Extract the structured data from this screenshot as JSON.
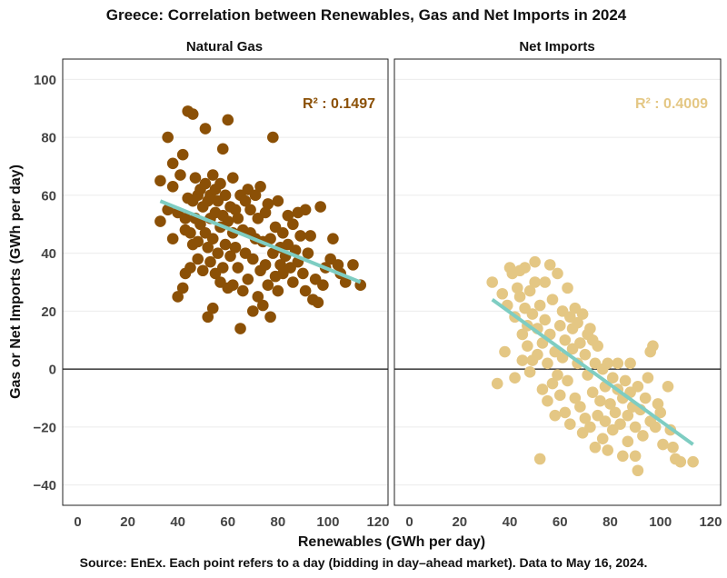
{
  "chart_data": {
    "type": "scatter",
    "title": "Greece: Correlation between Renewables, Gas and Net Imports in 2024",
    "xlabel": "Renewables (GWh per day)",
    "ylabel": "Gas or Net Imports (GWh per day)",
    "caption": "Source: EnEx. Each point refers to a day (bidding in day–ahead market). Data to May 16, 2024.",
    "xlim": [
      -6,
      124
    ],
    "ylim": [
      -47,
      107
    ],
    "x_ticks": [
      0,
      20,
      40,
      60,
      80,
      100,
      120
    ],
    "y_ticks": [
      100,
      80,
      60,
      40,
      20,
      0,
      -20,
      -40
    ],
    "y_tick_labels": [
      "100",
      "80",
      "60",
      "40",
      "20",
      "0",
      "−20",
      "−40"
    ],
    "x_tick_labels": [
      "0",
      "20",
      "40",
      "60",
      "80",
      "100",
      "120"
    ],
    "zero_line": 0,
    "trend_color": "#7ecdc2",
    "panels": [
      {
        "title": "Natural Gas",
        "r2_label": "R² : 0.1497",
        "r2_color": "#8b5006",
        "point_color": "#8b5006",
        "trend": {
          "x": [
            33,
            113
          ],
          "y": [
            58,
            30
          ]
        },
        "points": [
          [
            33,
            65
          ],
          [
            33,
            51
          ],
          [
            36,
            55
          ],
          [
            36,
            80
          ],
          [
            38,
            71
          ],
          [
            38,
            63
          ],
          [
            38,
            45
          ],
          [
            40,
            54
          ],
          [
            40,
            25
          ],
          [
            41,
            67
          ],
          [
            42,
            28
          ],
          [
            42,
            74
          ],
          [
            43,
            52
          ],
          [
            43,
            33
          ],
          [
            43,
            48
          ],
          [
            44,
            59
          ],
          [
            44,
            89
          ],
          [
            45,
            35
          ],
          [
            45,
            47
          ],
          [
            46,
            88
          ],
          [
            46,
            58
          ],
          [
            46,
            43
          ],
          [
            47,
            52
          ],
          [
            47,
            66
          ],
          [
            48,
            60
          ],
          [
            48,
            38
          ],
          [
            48,
            44
          ],
          [
            49,
            62
          ],
          [
            49,
            50
          ],
          [
            50,
            56
          ],
          [
            50,
            34
          ],
          [
            51,
            83
          ],
          [
            51,
            64
          ],
          [
            51,
            47
          ],
          [
            52,
            18
          ],
          [
            52,
            58
          ],
          [
            52,
            42
          ],
          [
            53,
            60
          ],
          [
            53,
            52
          ],
          [
            53,
            37
          ],
          [
            54,
            21
          ],
          [
            54,
            67
          ],
          [
            54,
            45
          ],
          [
            55,
            54
          ],
          [
            55,
            33
          ],
          [
            55,
            62
          ],
          [
            56,
            40
          ],
          [
            56,
            58
          ],
          [
            57,
            64
          ],
          [
            57,
            49
          ],
          [
            57,
            30
          ],
          [
            58,
            76
          ],
          [
            58,
            35
          ],
          [
            58,
            53
          ],
          [
            59,
            60
          ],
          [
            59,
            43
          ],
          [
            60,
            86
          ],
          [
            60,
            28
          ],
          [
            60,
            51
          ],
          [
            61,
            56
          ],
          [
            61,
            39
          ],
          [
            62,
            66
          ],
          [
            62,
            47
          ],
          [
            62,
            29
          ],
          [
            63,
            55
          ],
          [
            63,
            42
          ],
          [
            64,
            35
          ],
          [
            64,
            52
          ],
          [
            65,
            60
          ],
          [
            65,
            14
          ],
          [
            66,
            27
          ],
          [
            66,
            48
          ],
          [
            67,
            58
          ],
          [
            67,
            40
          ],
          [
            68,
            62
          ],
          [
            68,
            31
          ],
          [
            69,
            55
          ],
          [
            69,
            47
          ],
          [
            70,
            20
          ],
          [
            70,
            38
          ],
          [
            71,
            60
          ],
          [
            71,
            45
          ],
          [
            72,
            25
          ],
          [
            72,
            52
          ],
          [
            73,
            34
          ],
          [
            73,
            63
          ],
          [
            74,
            44
          ],
          [
            74,
            22
          ],
          [
            75,
            54
          ],
          [
            75,
            36
          ],
          [
            76,
            57
          ],
          [
            76,
            29
          ],
          [
            77,
            45
          ],
          [
            77,
            18
          ],
          [
            78,
            80
          ],
          [
            78,
            40
          ],
          [
            79,
            49
          ],
          [
            79,
            32
          ],
          [
            80,
            58
          ],
          [
            80,
            27
          ],
          [
            81,
            42
          ],
          [
            81,
            36
          ],
          [
            82,
            47
          ],
          [
            82,
            33
          ],
          [
            83,
            39
          ],
          [
            84,
            53
          ],
          [
            84,
            43
          ],
          [
            85,
            35
          ],
          [
            86,
            50
          ],
          [
            86,
            30
          ],
          [
            87,
            41
          ],
          [
            88,
            54
          ],
          [
            88,
            37
          ],
          [
            89,
            46
          ],
          [
            90,
            33
          ],
          [
            91,
            55
          ],
          [
            91,
            27
          ],
          [
            92,
            40
          ],
          [
            93,
            46
          ],
          [
            94,
            24
          ],
          [
            95,
            31
          ],
          [
            96,
            23
          ],
          [
            97,
            56
          ],
          [
            98,
            29
          ],
          [
            99,
            35
          ],
          [
            101,
            38
          ],
          [
            102,
            45
          ],
          [
            104,
            36
          ],
          [
            105,
            33
          ],
          [
            107,
            30
          ],
          [
            110,
            36
          ],
          [
            113,
            29
          ]
        ]
      },
      {
        "title": "Net Imports",
        "r2_label": "R² : 0.4009",
        "r2_color": "#e4c784",
        "point_color": "#e4c784",
        "trend": {
          "x": [
            33,
            113
          ],
          "y": [
            24,
            -26
          ]
        },
        "points": [
          [
            33,
            30
          ],
          [
            35,
            -5
          ],
          [
            37,
            26
          ],
          [
            38,
            6
          ],
          [
            39,
            22
          ],
          [
            40,
            35
          ],
          [
            41,
            33
          ],
          [
            42,
            -3
          ],
          [
            42,
            18
          ],
          [
            43,
            28
          ],
          [
            44,
            34
          ],
          [
            44,
            25
          ],
          [
            45,
            12
          ],
          [
            45,
            3
          ],
          [
            46,
            21
          ],
          [
            46,
            35
          ],
          [
            47,
            8
          ],
          [
            47,
            15
          ],
          [
            48,
            27
          ],
          [
            48,
            -1
          ],
          [
            49,
            3
          ],
          [
            49,
            19
          ],
          [
            50,
            37
          ],
          [
            50,
            30
          ],
          [
            51,
            14
          ],
          [
            51,
            5
          ],
          [
            52,
            -31
          ],
          [
            52,
            22
          ],
          [
            53,
            9
          ],
          [
            53,
            -7
          ],
          [
            54,
            30
          ],
          [
            54,
            17
          ],
          [
            55,
            2
          ],
          [
            55,
            -11
          ],
          [
            56,
            36
          ],
          [
            56,
            12
          ],
          [
            57,
            -5
          ],
          [
            57,
            24
          ],
          [
            58,
            -16
          ],
          [
            58,
            6
          ],
          [
            59,
            33
          ],
          [
            59,
            -2
          ],
          [
            60,
            15
          ],
          [
            60,
            -9
          ],
          [
            61,
            20
          ],
          [
            61,
            4
          ],
          [
            62,
            -15
          ],
          [
            62,
            10
          ],
          [
            63,
            28
          ],
          [
            63,
            -4
          ],
          [
            64,
            18
          ],
          [
            64,
            -19
          ],
          [
            65,
            7
          ],
          [
            65,
            14
          ],
          [
            66,
            -10
          ],
          [
            66,
            21
          ],
          [
            67,
            2
          ],
          [
            67,
            16
          ],
          [
            68,
            -13
          ],
          [
            68,
            9
          ],
          [
            69,
            -22
          ],
          [
            69,
            19
          ],
          [
            70,
            5
          ],
          [
            70,
            -17
          ],
          [
            71,
            12
          ],
          [
            71,
            -2
          ],
          [
            72,
            -20
          ],
          [
            72,
            14
          ],
          [
            73,
            -8
          ],
          [
            73,
            10
          ],
          [
            74,
            -27
          ],
          [
            74,
            2
          ],
          [
            75,
            -16
          ],
          [
            75,
            8
          ],
          [
            76,
            -11
          ],
          [
            77,
            0
          ],
          [
            77,
            -24
          ],
          [
            78,
            -6
          ],
          [
            78,
            -18
          ],
          [
            79,
            2
          ],
          [
            79,
            -28
          ],
          [
            80,
            -12
          ],
          [
            81,
            -3
          ],
          [
            81,
            -21
          ],
          [
            82,
            -15
          ],
          [
            83,
            -7
          ],
          [
            83,
            2
          ],
          [
            84,
            -19
          ],
          [
            85,
            -10
          ],
          [
            85,
            -30
          ],
          [
            86,
            -4
          ],
          [
            87,
            -16
          ],
          [
            87,
            -25
          ],
          [
            88,
            -8
          ],
          [
            88,
            2
          ],
          [
            89,
            -13
          ],
          [
            90,
            -30
          ],
          [
            90,
            -20
          ],
          [
            91,
            -35
          ],
          [
            91,
            -6
          ],
          [
            92,
            -14
          ],
          [
            93,
            -23
          ],
          [
            94,
            -10
          ],
          [
            95,
            -3
          ],
          [
            96,
            6
          ],
          [
            96,
            -18
          ],
          [
            97,
            8
          ],
          [
            98,
            -20
          ],
          [
            99,
            -12
          ],
          [
            100,
            -15
          ],
          [
            101,
            -26
          ],
          [
            103,
            -6
          ],
          [
            104,
            -21
          ],
          [
            105,
            -27
          ],
          [
            106,
            -31
          ],
          [
            108,
            -32
          ],
          [
            113,
            -32
          ]
        ]
      }
    ]
  }
}
